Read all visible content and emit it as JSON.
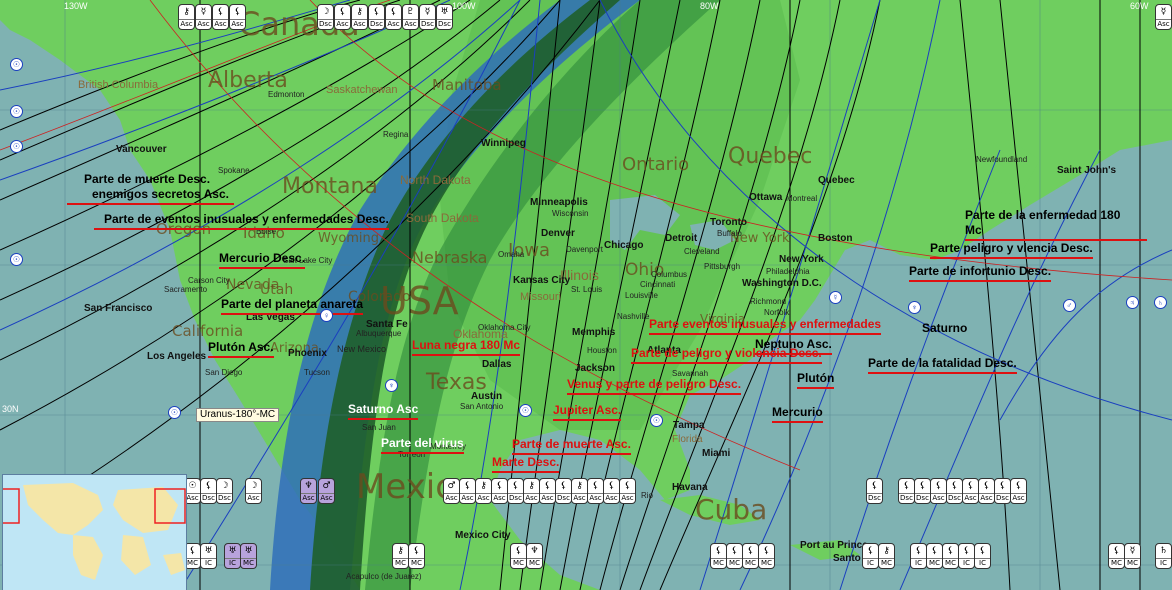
{
  "colors": {
    "ocean": "#7fb2b2",
    "land": "#6fce5f",
    "band_dark": "#1f5f2a",
    "band_blue": "#2f6fb8",
    "annotation_red": "#dd1111"
  },
  "longitude_labels": [
    "130W",
    "100W",
    "60W",
    "80W",
    "30N"
  ],
  "map_labels": {
    "countries": [
      "Canada",
      "USA",
      "Mexico",
      "Cuba"
    ],
    "regions": [
      "Alberta",
      "Montana",
      "Texas",
      "Quebec",
      "Ontario",
      "Iowa",
      "Nebraska",
      "Ohio",
      "Utah",
      "Colorado",
      "Idaho",
      "Oregon",
      "Nevada",
      "California",
      "Arizona",
      "Wyoming",
      "North Dakota",
      "South Dakota",
      "New York",
      "Virginia",
      "Illinois",
      "Missouri",
      "Oklahoma",
      "Florida",
      "New Mexico",
      "Saskatchewan",
      "Manitoba",
      "British Columbia"
    ],
    "cities": [
      "Vancouver",
      "Spokane",
      "Edmonton",
      "Regina",
      "Winnipeg",
      "Minneapolis",
      "Wisconsin",
      "Denver",
      "Omaha",
      "Kansas City",
      "Chicago",
      "Detroit",
      "Cleveland",
      "Toronto",
      "Buffalo",
      "Ottawa",
      "Montreal",
      "Quebec",
      "Boston",
      "New York",
      "Philadelphia",
      "Washington D.C.",
      "Richmond",
      "Norfolk",
      "Pittsburgh",
      "Columbus",
      "Cincinnati",
      "Louisville",
      "St. Louis",
      "Memphis",
      "Nashville",
      "Atlanta",
      "Houston",
      "Dallas",
      "San Antonio",
      "Austin",
      "Oklahoma City",
      "Santa Fe",
      "Albuquerque",
      "Phoenix",
      "Tucson",
      "Las Vegas",
      "San Diego",
      "Los Angeles",
      "San Francisco",
      "Sacramento",
      "Carson City",
      "Salt Lake City",
      "Boise",
      "Jackson",
      "Savannah",
      "Tampa",
      "Miami",
      "Havana",
      "Monterrey",
      "Torreon",
      "San Juan",
      "Mexico City",
      "Acapulco (de Juarez)",
      "Port au Prince",
      "Santo",
      "Saint John's",
      "Newfoundland",
      "Rio",
      "Davenport"
    ]
  },
  "annotations": [
    {
      "text": "Parte de muerte Desc.",
      "color": "black"
    },
    {
      "text": "enemigos secretos Asc.",
      "color": "black"
    },
    {
      "text": "Parte de eventos inusuales y enfermedades Desc.",
      "color": "black"
    },
    {
      "text": "Mercurio Desc.",
      "color": "black"
    },
    {
      "text": "Parte del planeta anareta",
      "color": "black"
    },
    {
      "text": "Plutón Asc.",
      "color": "black"
    },
    {
      "text": "Luna negra 180 Mc",
      "color": "red"
    },
    {
      "text": "Saturno Asc",
      "color": "white"
    },
    {
      "text": "Parte del virus",
      "color": "white"
    },
    {
      "text": "Parte de muerte Asc.",
      "color": "red"
    },
    {
      "text": "Marte Desc.",
      "color": "red"
    },
    {
      "text": "Jupiter Asc.",
      "color": "red"
    },
    {
      "text": "Venus y parte de peligro Desc.",
      "color": "red"
    },
    {
      "text": "Parte de peligro y violencia Desc.",
      "color": "red"
    },
    {
      "text": "Parte eventos inusuales y enfermedades",
      "color": "red"
    },
    {
      "text": "Neptuno Asc.",
      "color": "black"
    },
    {
      "text": "Saturno",
      "color": "black"
    },
    {
      "text": "Plutón",
      "color": "black"
    },
    {
      "text": "Mercurio",
      "color": "black"
    },
    {
      "text": "Parte de la fatalidad Desc.",
      "color": "black"
    },
    {
      "text": "Parte de la enfermedad 180",
      "color": "black"
    },
    {
      "text": "Mc",
      "color": "black"
    },
    {
      "text": "Parte peligro y vlencia Desc.",
      "color": "black"
    },
    {
      "text": "Parte de infortunio Desc.",
      "color": "black"
    }
  ],
  "uranus_tag": "Uranus-180°-MC",
  "line_badges": {
    "top": [
      "Asc",
      "Asc",
      "Asc",
      "Asc",
      "Dsc",
      "Asc",
      "Asc",
      "Dsc",
      "Asc",
      "Asc",
      "Dsc",
      "Dsc",
      "Asc"
    ],
    "middle": [
      "Asc",
      "Dsc",
      "Dsc",
      "Asc",
      "Asc",
      "Asc",
      "Asc",
      "Asc",
      "Asc",
      "Asc",
      "Dsc",
      "Asc",
      "Asc",
      "Dsc",
      "Asc",
      "Asc",
      "Asc",
      "Asc",
      "Asc",
      "Dsc",
      "Dsc",
      "Dsc",
      "Asc",
      "Dsc",
      "Asc",
      "Asc",
      "Dsc",
      "Asc",
      "Asc",
      "Dsc",
      "Asc",
      "Dsc",
      "Dsc",
      "Dsc"
    ],
    "bottom": [
      "MC",
      "IC",
      "IC",
      "MC",
      "MC",
      "MC",
      "MC",
      "MC",
      "MC",
      "MC",
      "MC",
      "MC",
      "IC",
      "MC",
      "IC",
      "MC",
      "MC",
      "IC",
      "IC",
      "MC",
      "MC",
      "IC"
    ]
  }
}
